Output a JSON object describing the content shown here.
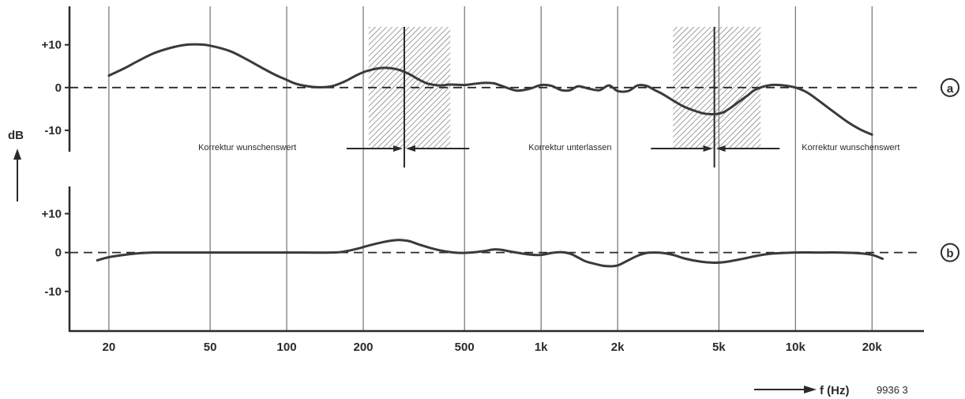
{
  "chart_data": {
    "type": "line",
    "x_scale": "log",
    "x_ticks": [
      {
        "value": 20,
        "label": "20"
      },
      {
        "value": 50,
        "label": "50"
      },
      {
        "value": 100,
        "label": "100"
      },
      {
        "value": 200,
        "label": "200"
      },
      {
        "value": 500,
        "label": "500"
      },
      {
        "value": 1000,
        "label": "1k"
      },
      {
        "value": 2000,
        "label": "2k"
      },
      {
        "value": 5000,
        "label": "5k"
      },
      {
        "value": 10000,
        "label": "10k"
      },
      {
        "value": 20000,
        "label": "20k"
      }
    ],
    "xlim": [
      14,
      32000
    ],
    "xlabel": "f (Hz)",
    "ylabel": "dB",
    "figure_code": "9936 3",
    "grid": "vertical lines at x ticks",
    "panels": [
      {
        "id": "a",
        "marker": "a",
        "ylim": [
          -15,
          19
        ],
        "y_ticks": [
          {
            "value": 10,
            "label": "+10"
          },
          {
            "value": 0,
            "label": "0"
          },
          {
            "value": -10,
            "label": "-10"
          }
        ],
        "reference_line": 0,
        "shaded_bands": [
          {
            "from": 210,
            "to": 440,
            "center": 290
          },
          {
            "from": 3300,
            "to": 7300,
            "center": 4800
          }
        ],
        "annotations": [
          {
            "text": "Korrektur wunschenswert",
            "x": 70
          },
          {
            "text": "Korrektur unterlassen",
            "x": 1300
          },
          {
            "text": "Korrektur wunschenswert",
            "x": 16500
          }
        ],
        "series": [
          {
            "x": [
              20,
              23,
              26,
              30,
              35,
              40,
              45,
              50,
              60,
              70,
              80,
              90,
              100,
              110,
              130,
              150,
              170,
              190,
              210,
              240,
              270,
              300,
              330,
              360,
              400,
              440,
              500,
              550,
              600,
              650,
              700,
              800,
              900,
              1000,
              1100,
              1200,
              1300,
              1400,
              1550,
              1700,
              1850,
              2000,
              2200,
              2400,
              2600,
              2800,
              3000,
              3300,
              3600,
              4000,
              4400,
              4800,
              5200,
              5600,
              6000,
              6500,
              7000,
              8000,
              9000,
              10000,
              11000,
              12000,
              14000,
              16000,
              18000,
              20000
            ],
            "y": [
              2.8,
              4.5,
              6.2,
              8,
              9.3,
              10,
              10.1,
              9.8,
              8.5,
              6.5,
              4.6,
              3,
              1.8,
              0.8,
              0.1,
              0.3,
              1.5,
              3,
              4,
              4.6,
              4.3,
              3.3,
              1.9,
              0.9,
              0.5,
              0.7,
              0.6,
              0.9,
              1.1,
              1,
              0.4,
              -0.7,
              -0.3,
              0.6,
              0.4,
              -0.6,
              -0.6,
              0.3,
              -0.3,
              -0.6,
              0.5,
              -0.8,
              -0.8,
              0.5,
              0.4,
              -0.6,
              -1.5,
              -3,
              -4.3,
              -5.4,
              -6.1,
              -6.2,
              -5.8,
              -4.6,
              -3.3,
              -1.8,
              -0.4,
              0.6,
              0.5,
              0,
              -1,
              -2.5,
              -5.5,
              -8,
              -9.8,
              -11
            ]
          }
        ]
      },
      {
        "id": "b",
        "marker": "b",
        "ylim": [
          -20,
          17
        ],
        "y_ticks": [
          {
            "value": 10,
            "label": "+10"
          },
          {
            "value": 0,
            "label": "0"
          },
          {
            "value": -10,
            "label": "-10"
          }
        ],
        "reference_line": 0,
        "series": [
          {
            "x": [
              18,
              20,
              23,
              26,
              30,
              40,
              60,
              100,
              150,
              170,
              190,
              210,
              240,
              270,
              300,
              330,
              370,
              420,
              480,
              530,
              600,
              650,
              700,
              750,
              800,
              900,
              1000,
              1100,
              1200,
              1300,
              1400,
              1500,
              1650,
              1800,
              2000,
              2200,
              2400,
              2600,
              2800,
              3000,
              3300,
              3700,
              4200,
              4700,
              5200,
              6000,
              7000,
              8000,
              10000,
              12000,
              15000,
              18000,
              20000,
              22000
            ],
            "y": [
              -2,
              -1.2,
              -0.6,
              -0.2,
              0,
              0,
              0,
              0,
              0,
              0.3,
              1,
              1.8,
              2.7,
              3.2,
              3,
              2.1,
              1.1,
              0.3,
              -0.1,
              0,
              0.4,
              0.8,
              0.7,
              0.3,
              0,
              -0.5,
              -0.6,
              -0.1,
              0.1,
              -0.3,
              -1.3,
              -2.3,
              -3,
              -3.5,
              -3.3,
              -2,
              -0.8,
              -0.1,
              0,
              -0.1,
              -0.6,
              -1.6,
              -2.3,
              -2.6,
              -2.5,
              -1.8,
              -0.9,
              -0.3,
              0,
              0,
              0,
              -0.2,
              -0.6,
              -1.6
            ]
          }
        ]
      }
    ]
  }
}
